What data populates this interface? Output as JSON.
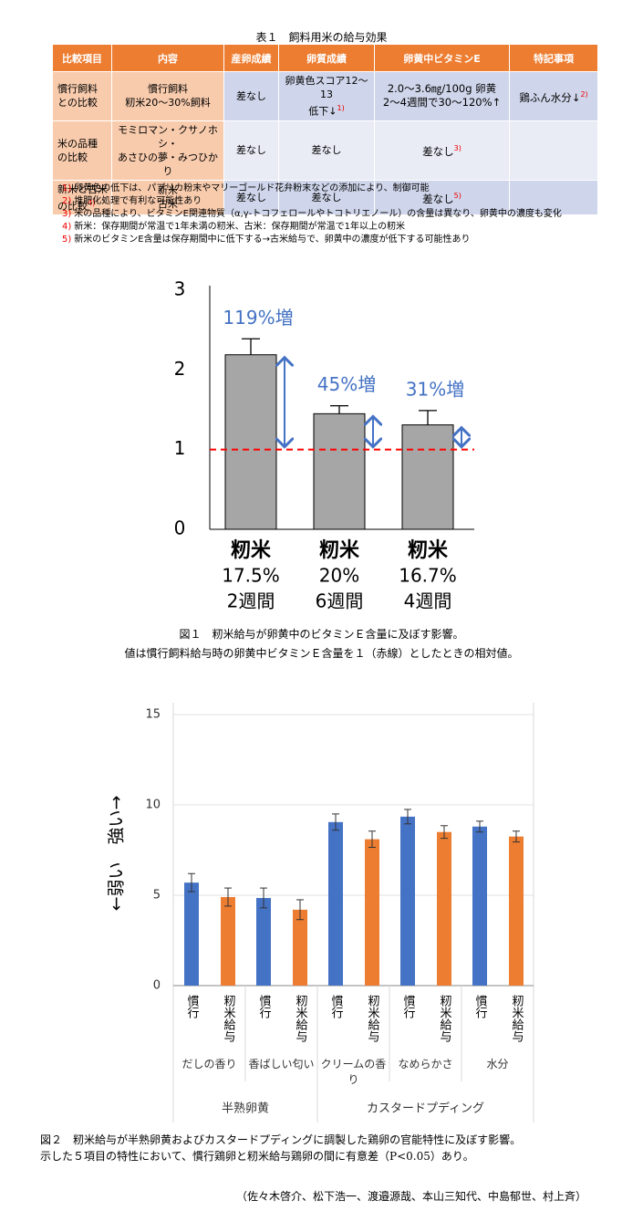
{
  "table": {
    "title": "表１　飼料用米の給与効果",
    "header": [
      "比較項目",
      "内容",
      "産卵成績",
      "卵質成績",
      "卵黄中ビタミンE",
      "特記事項"
    ],
    "rows": [
      [
        {
          "lines": [
            "慣行飼料",
            "との比較"
          ]
        },
        {
          "lines": [
            "慣行飼料",
            "籾米20〜30%飼料"
          ]
        },
        {
          "lines": [
            "差なし"
          ]
        },
        {
          "lines": [
            "卵黄色スコア12〜13",
            "低下↓"
          ],
          "sup": "1)"
        },
        {
          "lines": [
            "2.0〜3.6㎎/100g 卵黄",
            "2〜4週間で30〜120%↑"
          ]
        },
        {
          "lines": [
            "鶏ふん水分↓"
          ],
          "sup": "2)"
        }
      ],
      [
        {
          "lines": [
            "米の品種",
            "の比較"
          ]
        },
        {
          "lines": [
            "モミロマン・クサノホシ・",
            "あさひの夢・みつひかり"
          ]
        },
        {
          "lines": [
            "差なし"
          ]
        },
        {
          "lines": [
            "差なし"
          ]
        },
        {
          "lines": [
            "差なし"
          ],
          "sup": "3)"
        },
        {
          "lines": []
        }
      ],
      [
        {
          "lines": [
            "新米と古米",
            "の比較"
          ],
          "sup": "4)"
        },
        {
          "lines": [
            "新米",
            "古米"
          ]
        },
        {
          "lines": [
            "差なし"
          ]
        },
        {
          "lines": [
            "差なし"
          ]
        },
        {
          "lines": [
            "差なし"
          ],
          "sup": "5)"
        },
        {
          "lines": []
        }
      ]
    ]
  },
  "notes": [
    {
      "mark": "1)",
      "text": "卵黄色の低下は、パプリカ粉末やマリーゴールド花弁粉末などの添加により、制御可能"
    },
    {
      "mark": "2)",
      "text": "堆肥化処理で有利な可能性あり"
    },
    {
      "mark": "3)",
      "text": "米の品種により、ビタミンE関連物質（α,γ-トコフェロールやトコトリエノール）の含量は異なり、卵黄中の濃度も変化"
    },
    {
      "mark": "4)",
      "text": "新米：保存期間が常温で1年未満の籾米、古米：保存期間が常温で1年以上の籾米"
    },
    {
      "mark": "5)",
      "text": "新米のビタミンE含量は保存期間中に低下する→古米給与で、卵黄中の濃度が低下する可能性あり"
    }
  ],
  "chart_data": [
    {
      "type": "bar",
      "categories": [
        [
          "籾米",
          "17.5%",
          "2週間"
        ],
        [
          "籾米",
          "20%",
          "6週間"
        ],
        [
          "籾米",
          "16.7%",
          "4週間"
        ]
      ],
      "values": [
        2.19,
        1.45,
        1.31
      ],
      "errors": [
        0.2,
        0.1,
        0.18
      ],
      "color": "#a6a6a6",
      "annotations": [
        "119%増",
        "45%増",
        "31%増"
      ],
      "annotation_color": "#4472c4",
      "reference_line": 1,
      "reference_color": "#ff0000",
      "ylim": [
        0,
        3
      ],
      "yticks": [
        0,
        1,
        2,
        3
      ]
    },
    {
      "type": "grouped_bar",
      "ylabel": "←弱い　強い→",
      "groups": [
        {
          "name": "半熟卵黄",
          "categories": [
            "だしの香り",
            "香ばしい匂い"
          ]
        },
        {
          "name": "カスタードプディング",
          "categories": [
            "クリームの香り",
            "なめらかさ",
            "水分"
          ]
        }
      ],
      "series": [
        {
          "name": "慣行",
          "color": "#4472c4",
          "values": [
            5.7,
            4.85,
            9.05,
            9.35,
            8.8
          ],
          "errors": [
            0.5,
            0.55,
            0.45,
            0.4,
            0.3
          ]
        },
        {
          "name": "籾米給与",
          "color": "#ed7d31",
          "values": [
            4.9,
            4.2,
            8.1,
            8.5,
            8.25
          ],
          "errors": [
            0.5,
            0.55,
            0.45,
            0.35,
            0.3
          ]
        }
      ],
      "ylim": [
        0,
        15
      ],
      "yticks": [
        0,
        5,
        10,
        15
      ],
      "grid": true
    }
  ],
  "figure1_caption": [
    "図１　籾米給与が卵黄中のビタミンＥ含量に及ぼす影響。",
    "値は慣行飼料給与時の卵黄中ビタミンＥ含量を１（赤線）としたときの相対値。"
  ],
  "figure2_caption": [
    "図２　籾米給与が半熟卵黄およびカスタードプディングに調製した鶏卵の官能特性に及ぼす影響。",
    "示した５項目の特性において、慣行鶏卵と籾米給与鶏卵の間に有意差（P<0.05）あり。"
  ],
  "authors": "（佐々木啓介、松下浩一、渡邉源哉、本山三知代、中島郁世、村上斉）"
}
